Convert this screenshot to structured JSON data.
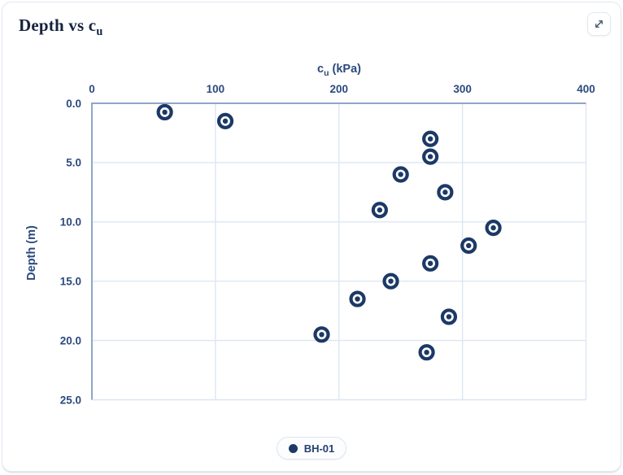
{
  "card": {
    "title_main": "Depth vs c",
    "title_sub": "u"
  },
  "legend": {
    "items": [
      {
        "label": "BH-01",
        "color": "#1c3966"
      }
    ]
  },
  "colors": {
    "marker": "#1c3966",
    "axis_line": "#8fa6c8",
    "gridline": "#dde6f3",
    "axis_text": "#2b4a7e",
    "title_text": "#16233e",
    "card_border": "#e2e8f0",
    "legend_border": "#dfe6ef",
    "legend_text": "#24416e",
    "icon": "#3b4f6b"
  },
  "chart_data": {
    "type": "scatter",
    "title": "Depth vs cu",
    "xlabel": "cu (kPa)",
    "xlabel_main": "c",
    "xlabel_sub": "u",
    "xlabel_unit": "(kPa)",
    "ylabel": "Depth (m)",
    "xlim": [
      0,
      400
    ],
    "ylim": [
      0,
      25
    ],
    "y_inverted": true,
    "x_axis_position": "top",
    "grid": true,
    "legend_position": "bottom",
    "x_ticks": [
      0,
      100,
      200,
      300,
      400
    ],
    "x_tick_labels": [
      "0",
      "100",
      "200",
      "300",
      "400"
    ],
    "y_ticks": [
      0,
      5,
      10,
      15,
      20,
      25
    ],
    "y_tick_labels": [
      "0.0",
      "5.0",
      "10.0",
      "15.0",
      "20.0",
      "25.0"
    ],
    "series": [
      {
        "name": "BH-01",
        "marker": "donut-circle",
        "color": "#1c3966",
        "points": [
          {
            "cu": 59,
            "depth": 0.75
          },
          {
            "cu": 108,
            "depth": 1.5
          },
          {
            "cu": 274,
            "depth": 3.0
          },
          {
            "cu": 274,
            "depth": 4.5
          },
          {
            "cu": 250,
            "depth": 6.0
          },
          {
            "cu": 286,
            "depth": 7.5
          },
          {
            "cu": 233,
            "depth": 9.0
          },
          {
            "cu": 325,
            "depth": 10.5
          },
          {
            "cu": 305,
            "depth": 12.0
          },
          {
            "cu": 274,
            "depth": 13.5
          },
          {
            "cu": 242,
            "depth": 15.0
          },
          {
            "cu": 215,
            "depth": 16.5
          },
          {
            "cu": 289,
            "depth": 18.0
          },
          {
            "cu": 186,
            "depth": 19.5
          },
          {
            "cu": 271,
            "depth": 21.0
          }
        ]
      }
    ]
  }
}
